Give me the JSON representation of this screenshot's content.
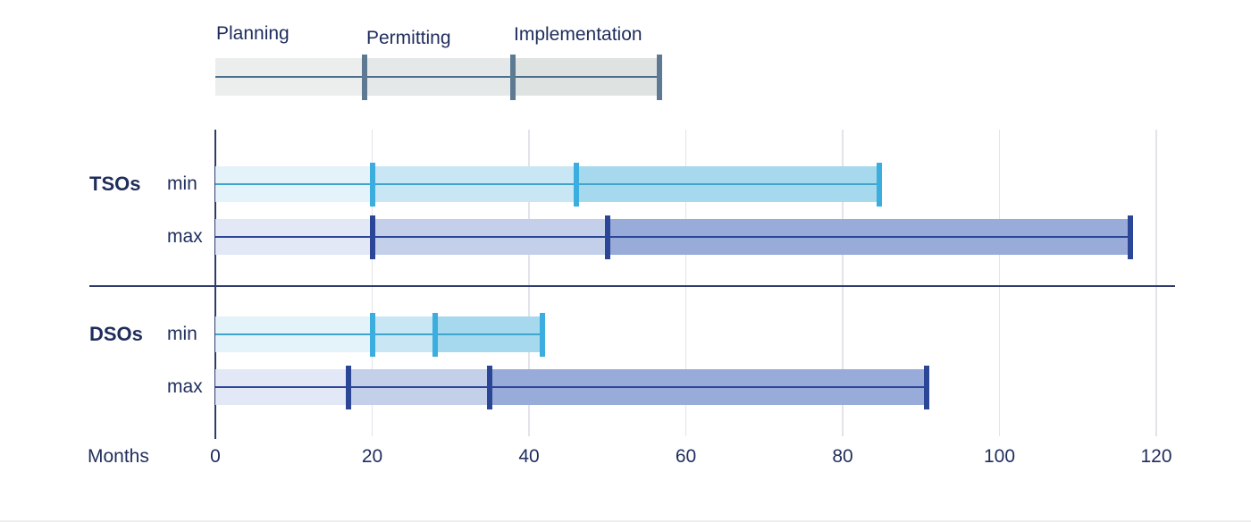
{
  "colors": {
    "text": "#1f2d5c",
    "axis": "#2f3c6b",
    "gridline": "#e3e3eb",
    "bottom_edge": "#ededf1",
    "min": {
      "segments": [
        "#e4f2f9",
        "#c8e6f3",
        "#a6d9ed"
      ],
      "divider": "#3badde",
      "line": "#3fa5cd"
    },
    "max": {
      "segments": [
        "#e2e8f6",
        "#c4cfea",
        "#99abd9"
      ],
      "divider": "#2b4697",
      "line": "#2b4697"
    },
    "legend": {
      "segments": [
        "#eceeee",
        "#e5e8e8",
        "#dee3e2"
      ],
      "divider": "#5d7a92",
      "line": "#4a708e"
    }
  },
  "legend": {
    "labels": [
      "Planning",
      "Permitting",
      "Implementation"
    ],
    "boundaries": [
      0,
      19,
      38,
      57
    ]
  },
  "chart_data": {
    "type": "bar",
    "subtype": "horizontal-phase-range-bars",
    "unit_label": "Months",
    "xlim": [
      0,
      120
    ],
    "x_ticks": [
      0,
      20,
      40,
      60,
      80,
      100,
      120
    ],
    "grid": "vertical-light",
    "phases": [
      "Planning",
      "Permitting",
      "Implementation"
    ],
    "groups": [
      {
        "name": "TSOs",
        "rows": [
          {
            "label": "min",
            "style": "min",
            "phase_boundaries_months": [
              0,
              20,
              46,
              85
            ]
          },
          {
            "label": "max",
            "style": "max",
            "phase_boundaries_months": [
              0,
              20,
              50,
              117
            ]
          }
        ]
      },
      {
        "name": "DSOs",
        "rows": [
          {
            "label": "min",
            "style": "min",
            "phase_boundaries_months": [
              0,
              20,
              28,
              42
            ]
          },
          {
            "label": "max",
            "style": "max",
            "phase_boundaries_months": [
              0,
              17,
              35,
              91
            ]
          }
        ]
      }
    ]
  }
}
